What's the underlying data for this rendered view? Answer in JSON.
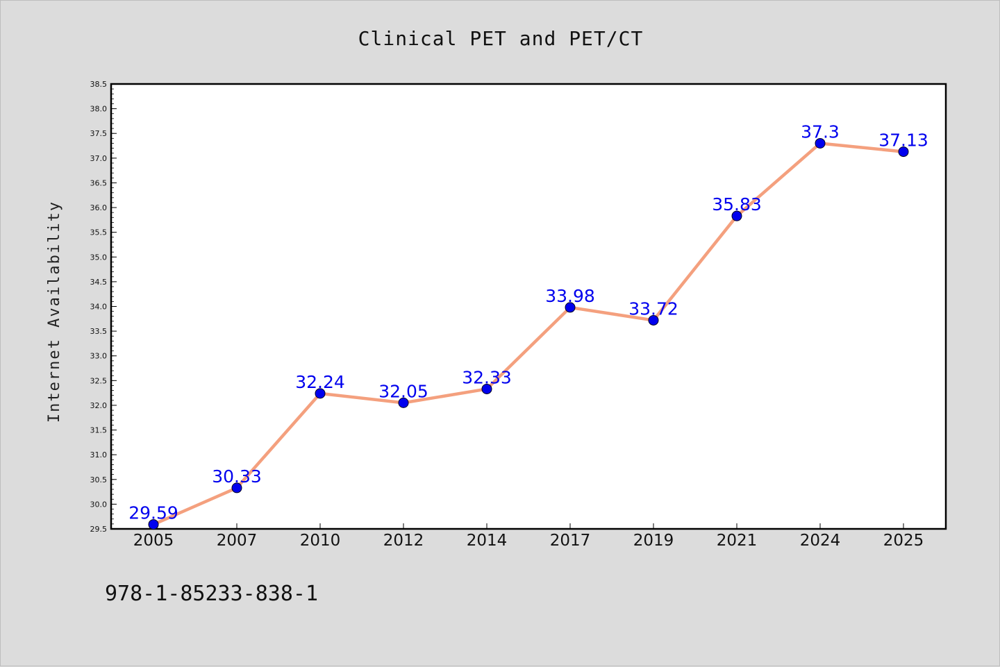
{
  "chart_data": {
    "type": "line",
    "title": "Clinical PET and PET/CT",
    "xlabel": "",
    "ylabel": "Internet Availability",
    "categories": [
      "2005",
      "2007",
      "2010",
      "2012",
      "2014",
      "2017",
      "2019",
      "2021",
      "2024",
      "2025"
    ],
    "series": [
      {
        "values": [
          29.59,
          30.33,
          32.24,
          32.05,
          32.33,
          33.98,
          33.72,
          35.83,
          37.3,
          37.13
        ],
        "labels": [
          "29.59",
          "30.33",
          "32.24",
          "32.05",
          "32.33",
          "33.98",
          "33.72",
          "35.83",
          "37.3",
          "37.13"
        ]
      }
    ],
    "ylim": [
      29.5,
      38.5
    ],
    "yticks": [
      "29.5",
      "30.0",
      "30.5",
      "31.0",
      "31.5",
      "32.0",
      "32.5",
      "33.0",
      "33.5",
      "34.0",
      "34.5",
      "35.0",
      "35.5",
      "36.0",
      "36.5",
      "37.0",
      "37.5",
      "38.0",
      "38.5"
    ],
    "grid": false,
    "legend": "none",
    "colors": {
      "line": "#f4a07e",
      "marker": "#0000ee",
      "data_label": "#0000ee",
      "plot_background": "#ffffff",
      "page_background": "#dcdcdc"
    }
  },
  "footnote": "978-1-85233-838-1"
}
